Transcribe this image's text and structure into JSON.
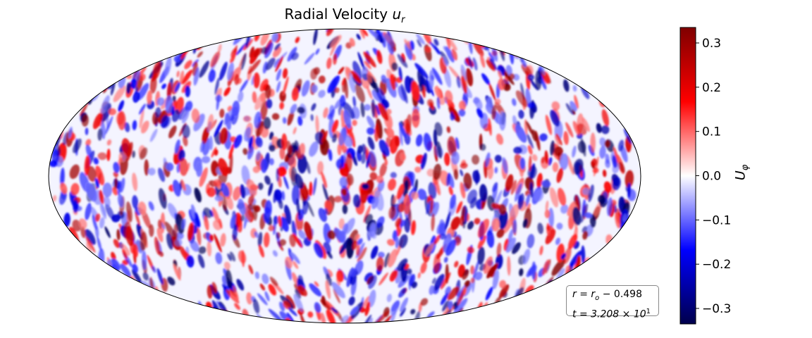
{
  "chart_data": {
    "type": "heatmap",
    "projection": "mollweide",
    "title": "Radial Velocity",
    "title_symbol": "u",
    "title_symbol_sub": "r",
    "colormap": "seismic",
    "colorbar": {
      "label_symbol": "U",
      "label_sub": "φ",
      "vmin": -0.335,
      "vmax": 0.335,
      "ticks": [
        0.3,
        0.2,
        0.1,
        0.0,
        -0.1,
        -0.2,
        -0.3
      ],
      "tick_labels": [
        "0.3",
        "0.2",
        "0.1",
        "0.0",
        "−0.1",
        "−0.2",
        "−0.3"
      ],
      "colors": {
        "low": "#00004c",
        "mid": "#ffffff",
        "high": "#7f0000"
      }
    },
    "annotation": {
      "line1": "r = r",
      "line1_sub": "o",
      "line1_value": "−  0.498",
      "line2": "t = 3.208 × 10",
      "line2_sup": "1"
    },
    "grid": false
  }
}
